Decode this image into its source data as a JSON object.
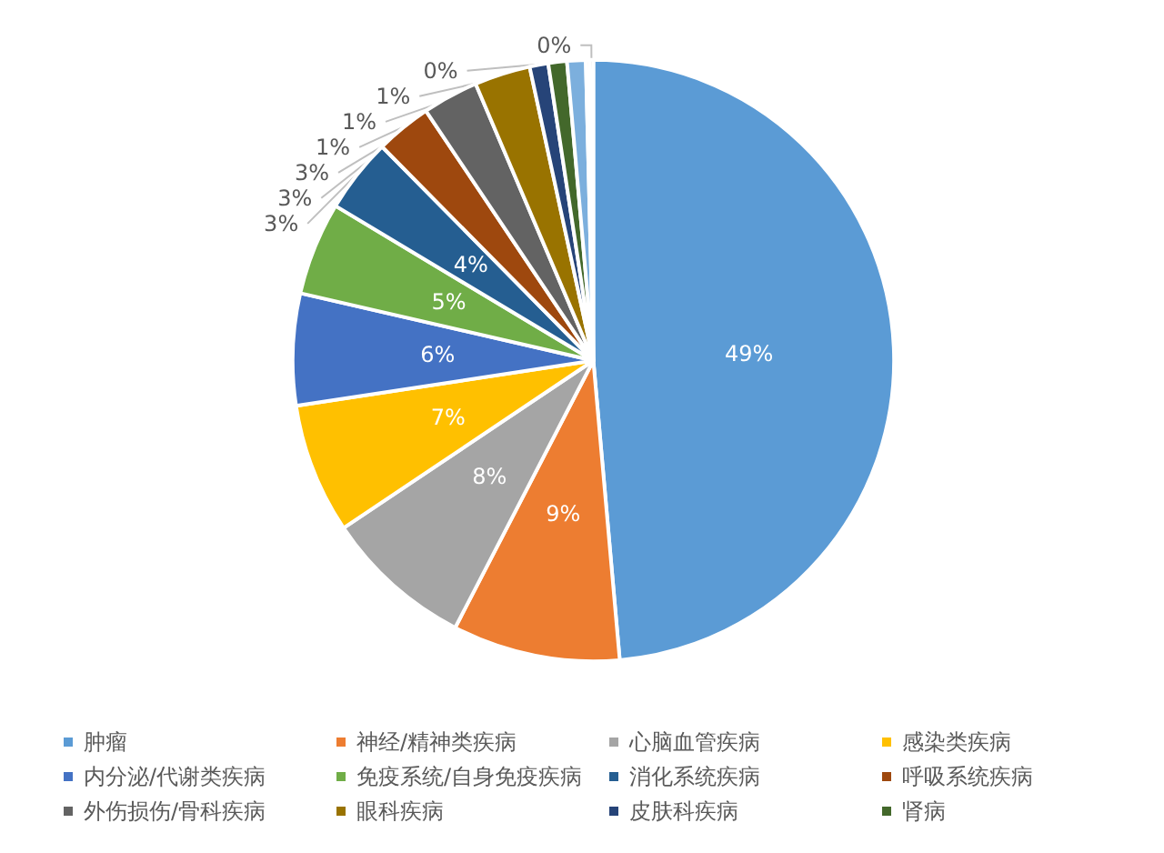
{
  "chart_data": {
    "type": "pie",
    "categories": [
      "肿瘤",
      "神经/精神类疾病",
      "心脑血管疾病",
      "感染类疾病",
      "内分泌/代谢类疾病",
      "免疫系统/自身免疫疾病",
      "消化系统疾病",
      "呼吸系统疾病",
      "外伤损伤/骨科疾病",
      "眼科疾病",
      "皮肤科疾病",
      "肾病",
      null,
      null,
      null
    ],
    "values": [
      48.6,
      9,
      8,
      7,
      6,
      5,
      4,
      3,
      3,
      3,
      1,
      1,
      1,
      0.2,
      0.2
    ],
    "value_labels": [
      "49%",
      "9%",
      "8%",
      "7%",
      "6%",
      "5%",
      "4%",
      "3%",
      "3%",
      "3%",
      "1%",
      "1%",
      "1%",
      "0%",
      "0%"
    ],
    "colors": [
      "#5b9bd5",
      "#ed7d31",
      "#a5a5a5",
      "#ffc000",
      "#4472c4",
      "#70ad47",
      "#255e91",
      "#9e480e",
      "#636363",
      "#997300",
      "#264478",
      "#43682b",
      "#7cafdd",
      "#e2b98f",
      "#b7b7b7"
    ],
    "legend": "bottom"
  }
}
